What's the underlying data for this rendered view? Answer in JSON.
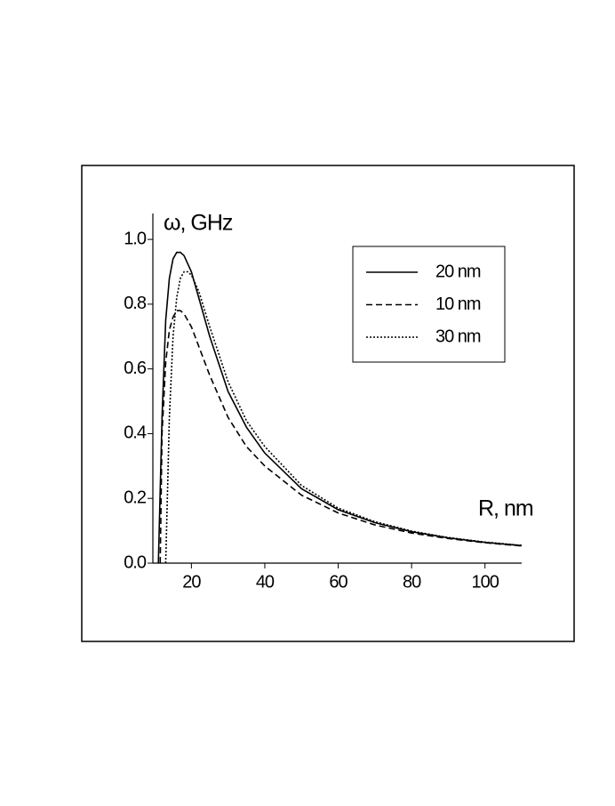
{
  "chart_data": {
    "type": "line",
    "x_label": "R, nm",
    "y_label": "ω, GHz",
    "xlim": [
      9.5,
      110
    ],
    "ylim": [
      0,
      1.08
    ],
    "xticks": [
      20,
      40,
      60,
      80,
      100
    ],
    "yticks": [
      {
        "value": 0,
        "label": "0.0"
      },
      {
        "value": 0.2,
        "label": "0.2"
      },
      {
        "value": 0.4,
        "label": "0.4"
      },
      {
        "value": 0.6,
        "label": "0.6"
      },
      {
        "value": 0.8,
        "label": "0.8"
      },
      {
        "value": 1,
        "label": "1.0"
      }
    ],
    "legend_position": "upper right",
    "series": [
      {
        "name": "20 nm",
        "color": "#000000",
        "dash": "solid",
        "x": [
          11,
          12,
          13,
          14,
          15,
          16,
          17,
          18,
          20,
          22,
          25,
          30,
          35,
          40,
          50,
          60,
          70,
          80,
          90,
          100,
          110
        ],
        "values": [
          0,
          0.45,
          0.75,
          0.88,
          0.94,
          0.96,
          0.96,
          0.95,
          0.9,
          0.82,
          0.7,
          0.53,
          0.42,
          0.34,
          0.23,
          0.165,
          0.125,
          0.097,
          0.078,
          0.064,
          0.054
        ]
      },
      {
        "name": "10 nm",
        "color": "#000000",
        "dash": "dashed",
        "x": [
          11.5,
          12,
          13,
          14,
          15,
          16,
          17,
          18,
          20,
          22,
          25,
          30,
          35,
          40,
          50,
          60,
          70,
          80,
          90,
          100,
          110
        ],
        "values": [
          0,
          0.4,
          0.62,
          0.72,
          0.76,
          0.78,
          0.78,
          0.77,
          0.73,
          0.67,
          0.58,
          0.45,
          0.36,
          0.3,
          0.21,
          0.155,
          0.118,
          0.093,
          0.076,
          0.063,
          0.053
        ]
      },
      {
        "name": "30 nm",
        "color": "#000000",
        "dash": "dotted",
        "x": [
          13,
          14,
          15,
          16,
          17,
          18,
          19,
          20,
          22,
          25,
          30,
          35,
          40,
          50,
          60,
          70,
          80,
          90,
          100,
          110
        ],
        "values": [
          0,
          0.45,
          0.7,
          0.82,
          0.88,
          0.9,
          0.9,
          0.89,
          0.84,
          0.73,
          0.56,
          0.44,
          0.36,
          0.24,
          0.17,
          0.128,
          0.099,
          0.079,
          0.065,
          0.055
        ]
      }
    ]
  }
}
